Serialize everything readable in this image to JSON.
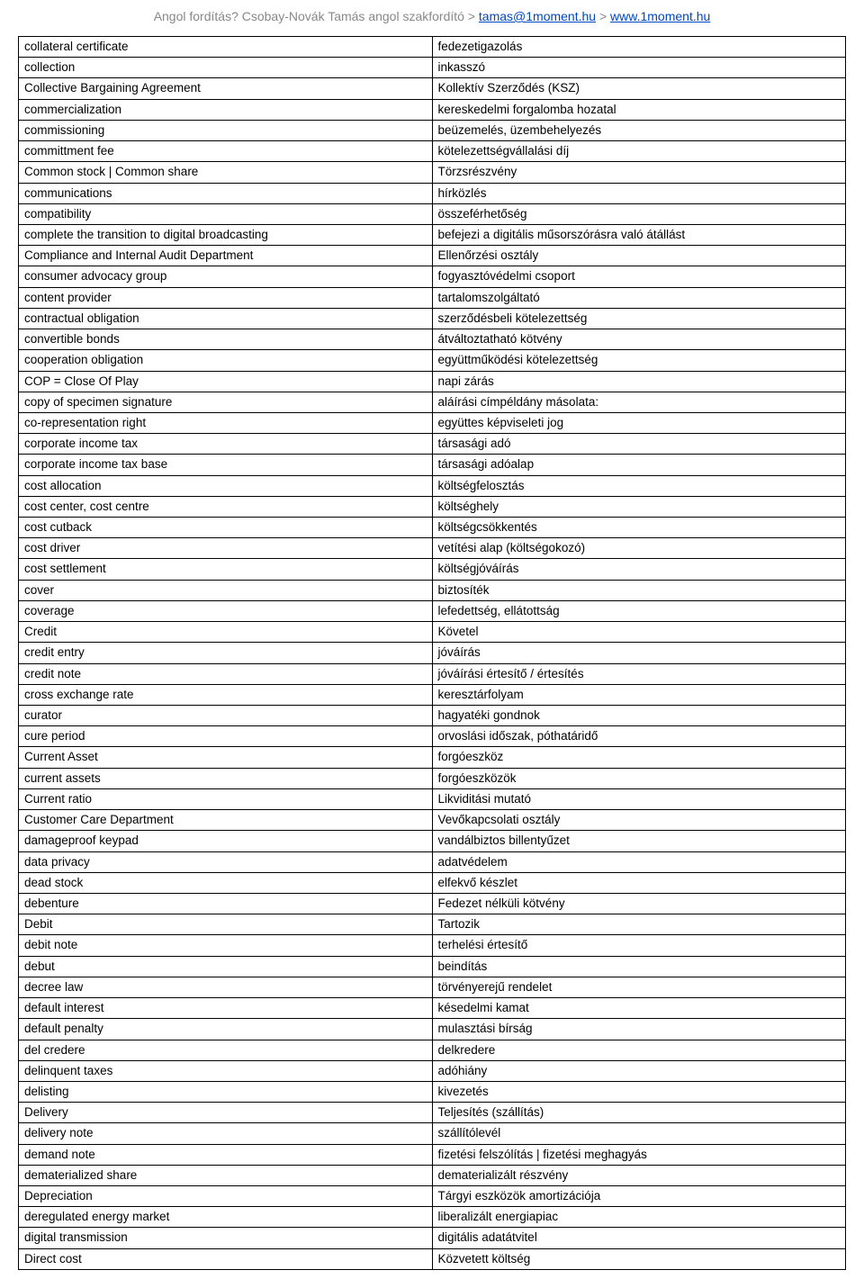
{
  "header": {
    "prefix": "Angol fordítás? Csobay-Novák Tamás angol szakfordító > ",
    "email": "tamas@1moment.hu",
    "sep": " > ",
    "site": "www.1moment.hu"
  },
  "dictionary": {
    "rows": [
      {
        "en": "collateral certificate",
        "hu": "fedezetigazolás"
      },
      {
        "en": "collection",
        "hu": "inkasszó"
      },
      {
        "en": "Collective Bargaining Agreement",
        "hu": "Kollektív Szerződés (KSZ)"
      },
      {
        "en": "commercialization",
        "hu": "kereskedelmi forgalomba hozatal"
      },
      {
        "en": "commissioning",
        "hu": "beüzemelés, üzembehelyezés"
      },
      {
        "en": "committment fee",
        "hu": "kötelezettségvállalási díj"
      },
      {
        "en": "Common stock | Common share",
        "hu": "Törzsrészvény"
      },
      {
        "en": "communications",
        "hu": "hírközlés"
      },
      {
        "en": "compatibility",
        "hu": "összeférhetőség"
      },
      {
        "en": "complete the transition to digital broadcasting",
        "hu": "befejezi a digitális műsorszórásra való átállást"
      },
      {
        "en": "Compliance and Internal Audit Department",
        "hu": "Ellenőrzési osztály"
      },
      {
        "en": "consumer advocacy group",
        "hu": "fogyasztóvédelmi csoport"
      },
      {
        "en": "content provider",
        "hu": "tartalomszolgáltató"
      },
      {
        "en": "contractual obligation",
        "hu": "szerződésbeli kötelezettség"
      },
      {
        "en": "convertible bonds",
        "hu": "átváltoztatható kötvény"
      },
      {
        "en": "cooperation obligation",
        "hu": "együttműködési kötelezettség"
      },
      {
        "en": "COP = Close Of Play",
        "hu": "napi zárás"
      },
      {
        "en": "copy of specimen signature",
        "hu": "aláírási címpéldány másolata:"
      },
      {
        "en": "co-representation right",
        "hu": "együttes képviseleti jog"
      },
      {
        "en": "corporate income tax",
        "hu": "társasági adó"
      },
      {
        "en": "corporate income tax base",
        "hu": "társasági adóalap"
      },
      {
        "en": "cost allocation",
        "hu": "költségfelosztás"
      },
      {
        "en": "cost center, cost centre",
        "hu": "költséghely"
      },
      {
        "en": "cost cutback",
        "hu": "költségcsökkentés"
      },
      {
        "en": "cost driver",
        "hu": "vetítési alap (költségokozó)"
      },
      {
        "en": "cost settlement",
        "hu": "költségjóváírás"
      },
      {
        "en": "cover",
        "hu": "biztosíték"
      },
      {
        "en": "coverage",
        "hu": "lefedettség, ellátottság"
      },
      {
        "en": "Credit",
        "hu": "Követel"
      },
      {
        "en": "credit entry",
        "hu": "jóváírás"
      },
      {
        "en": "credit note",
        "hu": "jóváírási értesítő / értesítés"
      },
      {
        "en": "cross exchange rate",
        "hu": "keresztárfolyam"
      },
      {
        "en": "curator",
        "hu": "hagyatéki gondnok"
      },
      {
        "en": "cure period",
        "hu": "orvoslási időszak, póthatáridő"
      },
      {
        "en": "Current Asset",
        "hu": "forgóeszköz"
      },
      {
        "en": "current assets",
        "hu": "forgóeszközök"
      },
      {
        "en": "Current ratio",
        "hu": "Likviditási mutató"
      },
      {
        "en": "Customer Care Department",
        "hu": "Vevőkapcsolati osztály"
      },
      {
        "en": "damageproof keypad",
        "hu": "vandálbiztos billentyűzet"
      },
      {
        "en": "data privacy",
        "hu": "adatvédelem"
      },
      {
        "en": "dead stock",
        "hu": "elfekvő készlet"
      },
      {
        "en": "debenture",
        "hu": "Fedezet nélküli kötvény"
      },
      {
        "en": "Debit",
        "hu": "Tartozik"
      },
      {
        "en": "debit note",
        "hu": "terhelési értesítő"
      },
      {
        "en": "debut",
        "hu": "beindítás"
      },
      {
        "en": "decree law",
        "hu": "törvényerejű rendelet"
      },
      {
        "en": "default interest",
        "hu": "késedelmi kamat"
      },
      {
        "en": "default penalty",
        "hu": "mulasztási bírság"
      },
      {
        "en": "del credere",
        "hu": "delkredere"
      },
      {
        "en": "delinquent taxes",
        "hu": "adóhiány"
      },
      {
        "en": "delisting",
        "hu": "kivezetés"
      },
      {
        "en": "Delivery",
        "hu": "Teljesítés (szállítás)"
      },
      {
        "en": "delivery note",
        "hu": "szállítólevél"
      },
      {
        "en": "demand note",
        "hu": "fizetési felszólítás | fizetési meghagyás"
      },
      {
        "en": "dematerialized share",
        "hu": "dematerializált részvény"
      },
      {
        "en": "Depreciation",
        "hu": "Tárgyi eszközök amortizációja"
      },
      {
        "en": "deregulated energy market",
        "hu": "liberalizált energiapiac"
      },
      {
        "en": "digital transmission",
        "hu": "digitális adatátvitel"
      },
      {
        "en": "Direct cost",
        "hu": "Közvetett költség"
      }
    ]
  }
}
